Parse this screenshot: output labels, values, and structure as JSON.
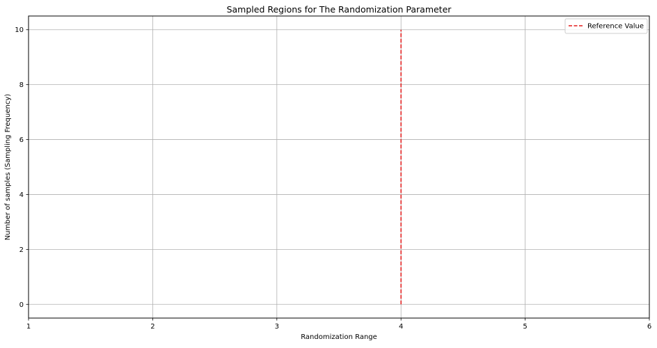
{
  "chart_data": {
    "type": "line",
    "title": "Sampled Regions for The Randomization Parameter",
    "xlabel": "Randomization Range",
    "ylabel": "Number of samples (Sampling Frequency)",
    "xlim": [
      1,
      6
    ],
    "ylim": [
      -0.5,
      10.5
    ],
    "x_ticks": [
      1,
      2,
      3,
      4,
      5,
      6
    ],
    "y_ticks": [
      0,
      2,
      4,
      6,
      8,
      10
    ],
    "grid": true,
    "legend_position": "top-right",
    "series": [
      {
        "name": "Reference Value",
        "style": "dashed",
        "color": "#e41a1a",
        "x": [
          4,
          4
        ],
        "y": [
          0,
          10
        ]
      }
    ]
  }
}
